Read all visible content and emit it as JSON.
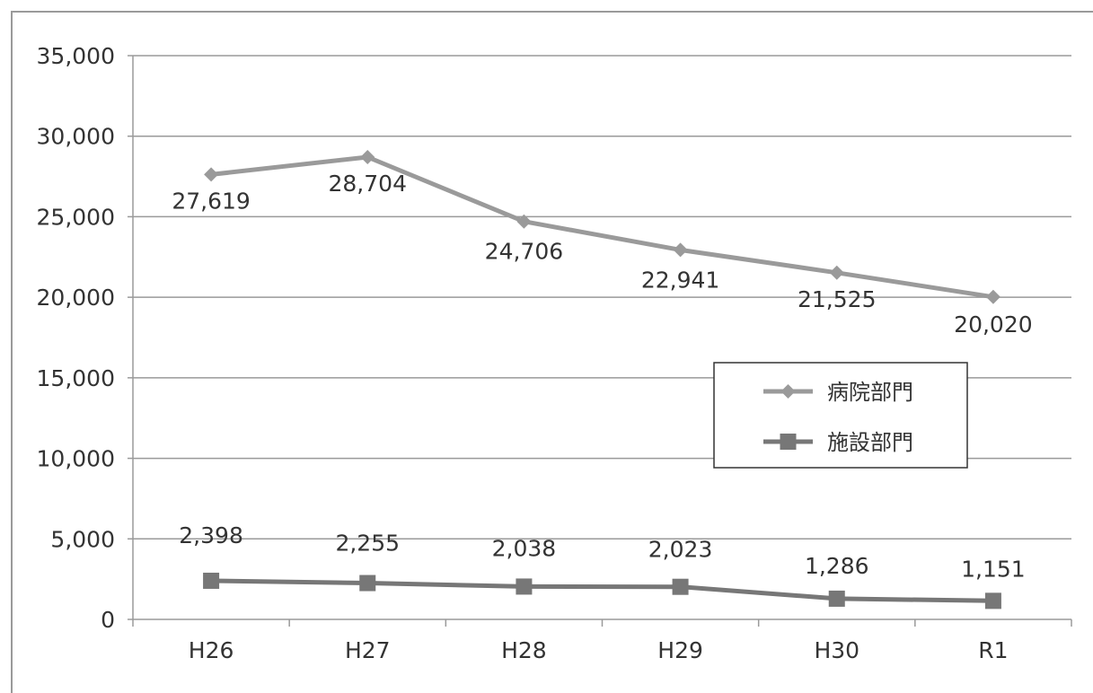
{
  "chart_data": {
    "type": "line",
    "categories": [
      "H26",
      "H27",
      "H28",
      "H29",
      "H30",
      "R1"
    ],
    "ylim": [
      0,
      35000
    ],
    "yticks": [
      0,
      5000,
      10000,
      15000,
      20000,
      25000,
      30000,
      35000
    ],
    "ytick_labels": [
      "0",
      "5,000",
      "10,000",
      "15,000",
      "20,000",
      "25,000",
      "30,000",
      "35,000"
    ],
    "grid": true,
    "legend_position": "right",
    "series": [
      {
        "name": "病院部門",
        "values": [
          27619,
          28704,
          24706,
          22941,
          21525,
          20020
        ],
        "labels": [
          "27,619",
          "28,704",
          "24,706",
          "22,941",
          "21,525",
          "20,020"
        ],
        "marker": "diamond",
        "color": "#9a9a9a"
      },
      {
        "name": "施設部門",
        "values": [
          2398,
          2255,
          2038,
          2023,
          1286,
          1151
        ],
        "labels": [
          "2,398",
          "2,255",
          "2,038",
          "2,023",
          "1,286",
          "1,151"
        ],
        "marker": "square",
        "color": "#777777"
      }
    ]
  }
}
